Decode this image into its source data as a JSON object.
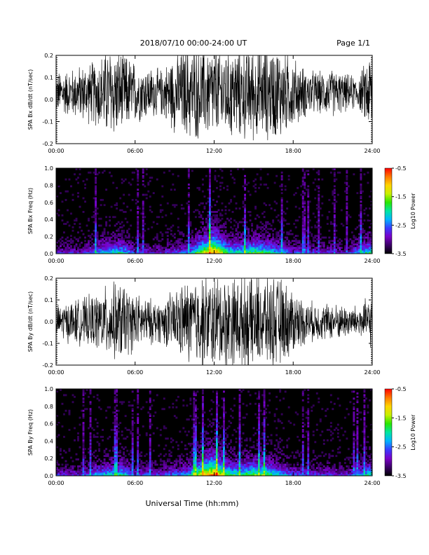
{
  "header": {
    "title": "2018/07/10   00:00-24:00 UT",
    "page": "Page 1/1"
  },
  "xlabel": "Universal Time (hh:mm)",
  "colorbar": {
    "label": "Log10 Power",
    "ticks": [
      "-0.5",
      "-1.5",
      "-2.5",
      "-3.5"
    ],
    "range": [
      -3.5,
      -0.5
    ],
    "colors": [
      "#000000",
      "#3b0066",
      "#7a00c8",
      "#3a3aff",
      "#00b4ff",
      "#00e6a0",
      "#29e600",
      "#c8f000",
      "#ffd400",
      "#ff7800",
      "#ff0000"
    ]
  },
  "chart_data": [
    {
      "type": "line",
      "ylabel": "SPA Bx dB/dt (nT/sec)",
      "ylim": [
        -0.2,
        0.2
      ],
      "yticks": [
        "0.2",
        "0.1",
        "0.0",
        "-0.1",
        "-0.2"
      ],
      "xticks": [
        "00:00",
        "06:00",
        "12:00",
        "18:00",
        "24:00"
      ],
      "xlim_hours": [
        0,
        24
      ],
      "envelope": {
        "hours": [
          0,
          1,
          2,
          3,
          4,
          5,
          6,
          7,
          8,
          9,
          10,
          11,
          12,
          13,
          14,
          15,
          16,
          17,
          18,
          19,
          20,
          21,
          22,
          23,
          24
        ],
        "amplitude": [
          0.09,
          0.1,
          0.12,
          0.14,
          0.2,
          0.18,
          0.13,
          0.11,
          0.1,
          0.17,
          0.2,
          0.2,
          0.2,
          0.2,
          0.2,
          0.2,
          0.2,
          0.2,
          0.15,
          0.1,
          0.09,
          0.1,
          0.08,
          0.07,
          0.2
        ]
      },
      "offset": 0.03
    },
    {
      "type": "heatmap",
      "ylabel": "SPA Bx Freq (Hz)",
      "ylim": [
        0,
        1.0
      ],
      "yticks": [
        "1.0",
        "0.8",
        "0.6",
        "0.4",
        "0.2",
        "0.0"
      ],
      "xticks": [
        "00:00",
        "06:00",
        "12:00",
        "18:00",
        "24:00"
      ],
      "xlim_hours": [
        0,
        24
      ],
      "activity": {
        "hours": [
          0,
          2,
          3,
          5,
          6,
          8,
          10,
          11,
          12,
          13,
          14,
          15,
          16,
          17,
          18,
          20,
          22,
          23.8
        ],
        "level": [
          0.3,
          0.25,
          0.45,
          0.55,
          0.3,
          0.25,
          0.4,
          0.75,
          1.0,
          0.6,
          0.55,
          0.65,
          0.6,
          0.45,
          0.35,
          0.3,
          0.25,
          0.6
        ]
      }
    },
    {
      "type": "line",
      "ylabel": "SPA By dB/dt (nT/sec)",
      "ylim": [
        -0.2,
        0.2
      ],
      "yticks": [
        "0.2",
        "0.1",
        "0.0",
        "-0.1",
        "-0.2"
      ],
      "xticks": [
        "00:00",
        "06:00",
        "12:00",
        "18:00",
        "24:00"
      ],
      "xlim_hours": [
        0,
        24
      ],
      "envelope": {
        "hours": [
          0,
          1,
          2,
          3,
          4,
          5,
          6,
          7,
          8,
          9,
          10,
          11,
          12,
          13,
          14,
          15,
          16,
          17,
          18,
          19,
          20,
          21,
          22,
          23,
          24
        ],
        "amplitude": [
          0.07,
          0.09,
          0.1,
          0.12,
          0.16,
          0.17,
          0.12,
          0.1,
          0.09,
          0.14,
          0.18,
          0.2,
          0.2,
          0.2,
          0.2,
          0.2,
          0.2,
          0.19,
          0.14,
          0.09,
          0.08,
          0.08,
          0.07,
          0.07,
          0.12
        ]
      },
      "offset": 0.0
    },
    {
      "type": "heatmap",
      "ylabel": "SPA By Freq (Hz)",
      "ylim": [
        0,
        1.0
      ],
      "yticks": [
        "1.0",
        "0.8",
        "0.6",
        "0.4",
        "0.2",
        "0.0"
      ],
      "xticks": [
        "00:00",
        "06:00",
        "12:00",
        "18:00",
        "24:00"
      ],
      "xlim_hours": [
        0,
        24
      ],
      "activity": {
        "hours": [
          0,
          2,
          3,
          5,
          6,
          8,
          10,
          11,
          12,
          13,
          14,
          15,
          16,
          17,
          18,
          20,
          22,
          23.8
        ],
        "level": [
          0.3,
          0.25,
          0.45,
          0.55,
          0.35,
          0.3,
          0.45,
          0.8,
          1.0,
          0.65,
          0.6,
          0.7,
          0.65,
          0.5,
          0.35,
          0.3,
          0.25,
          0.55
        ]
      }
    }
  ]
}
